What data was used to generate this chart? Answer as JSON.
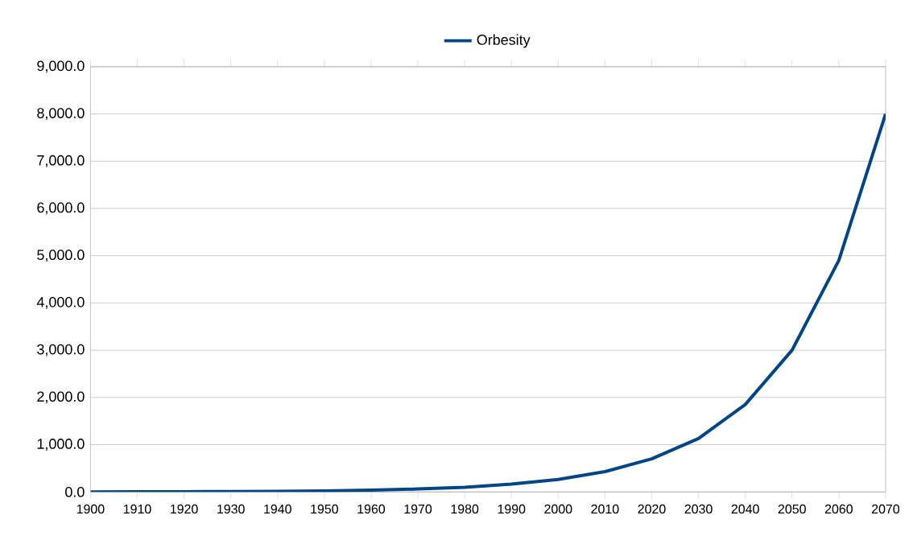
{
  "chart_data": {
    "type": "line",
    "x": [
      1900,
      1910,
      1920,
      1930,
      1940,
      1950,
      1960,
      1970,
      1980,
      1990,
      2000,
      2010,
      2020,
      2030,
      2040,
      2050,
      2060,
      2070
    ],
    "series": [
      {
        "name": "Orbesity",
        "color": "#004586",
        "values": [
          2,
          3,
          5,
          9,
          14,
          23,
          38,
          62,
          100,
          165,
          265,
          430,
          700,
          1130,
          1850,
          3000,
          4900,
          8000
        ]
      }
    ],
    "xlim": [
      1900,
      2070
    ],
    "xticks": [
      1900,
      1910,
      1920,
      1930,
      1940,
      1950,
      1960,
      1970,
      1980,
      1990,
      2000,
      2010,
      2020,
      2030,
      2040,
      2050,
      2060,
      2070
    ],
    "ylim": [
      0,
      9000
    ],
    "yticks": [
      {
        "value": 0,
        "label": "0.0"
      },
      {
        "value": 1000,
        "label": "1,000.0"
      },
      {
        "value": 2000,
        "label": "2,000.0"
      },
      {
        "value": 3000,
        "label": "3,000.0"
      },
      {
        "value": 4000,
        "label": "4,000.0"
      },
      {
        "value": 5000,
        "label": "5,000.0"
      },
      {
        "value": 6000,
        "label": "6,000.0"
      },
      {
        "value": 7000,
        "label": "7,000.0"
      },
      {
        "value": 8000,
        "label": "8,000.0"
      },
      {
        "value": 9000,
        "label": "9,000.0"
      }
    ],
    "grid": "y",
    "legend": "top",
    "marker": "none",
    "line_style": "solid"
  }
}
